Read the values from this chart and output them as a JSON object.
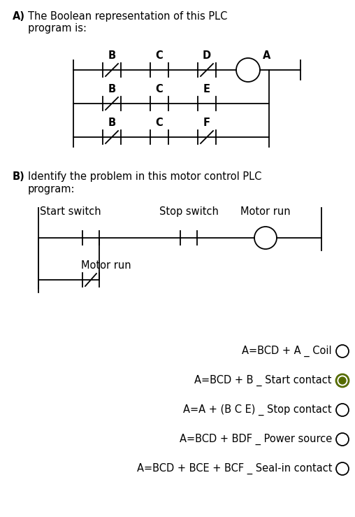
{
  "bg_color": "#ffffff",
  "text_color": "#000000",
  "title_A_line1": "A)  The Boolean representation of this PLC",
  "title_A_line2": "     program is:",
  "title_B_line1": "B)  Identify the problem in this motor control PLC",
  "title_B_line2": "     program:",
  "options": [
    {
      "text": "A=BCD + A _ Coil",
      "selected": false
    },
    {
      "text": "A=BCD + B _ Start contact",
      "selected": true
    },
    {
      "text": "A=A + (B C E) _ Stop contact",
      "selected": false
    },
    {
      "text": "A=BCD + BDF _ Power source",
      "selected": false
    },
    {
      "text": "A=BCD + BCE + BCF _ Seal-in contact",
      "selected": false
    }
  ],
  "selected_fill": "#556b00",
  "selected_edge": "#556b00",
  "fig_width": 5.08,
  "fig_height": 7.39,
  "dpi": 100
}
